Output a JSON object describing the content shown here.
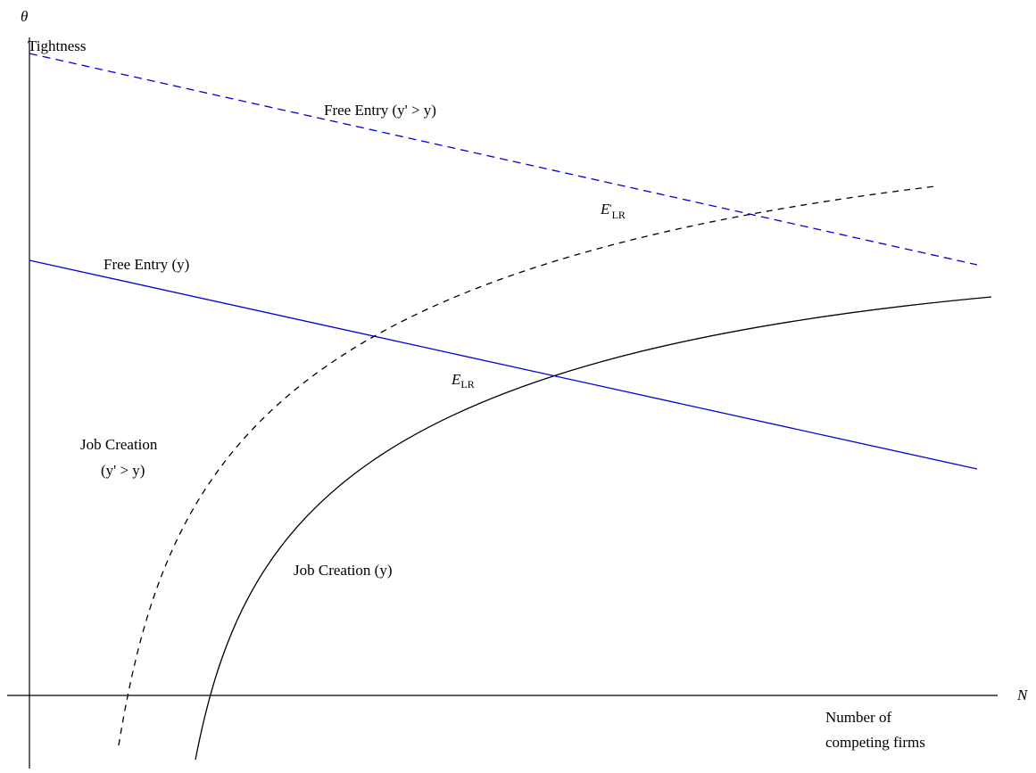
{
  "axes": {
    "y_symbol": "θ",
    "y_label": "Tightness",
    "x_symbol": "N",
    "x_label_line1": "Number of",
    "x_label_line2": "competing firms"
  },
  "curves": {
    "free_entry_high": {
      "label": "Free Entry (y' > y)",
      "color": "#0000dd",
      "style": "dashed"
    },
    "free_entry": {
      "label": "Free Entry (y)",
      "color": "#0000dd",
      "style": "solid"
    },
    "job_creation_high": {
      "label_line1": "Job Creation",
      "label_line2": "(y' > y)",
      "color": "#000000",
      "style": "dashed"
    },
    "job_creation": {
      "label": "Job Creation (y)",
      "color": "#000000",
      "style": "solid"
    }
  },
  "equilibria": {
    "e_lr": {
      "main": "E",
      "sub": "LR"
    },
    "e_lr_high": {
      "main": "E",
      "prime": "'",
      "sub": "LR"
    }
  }
}
